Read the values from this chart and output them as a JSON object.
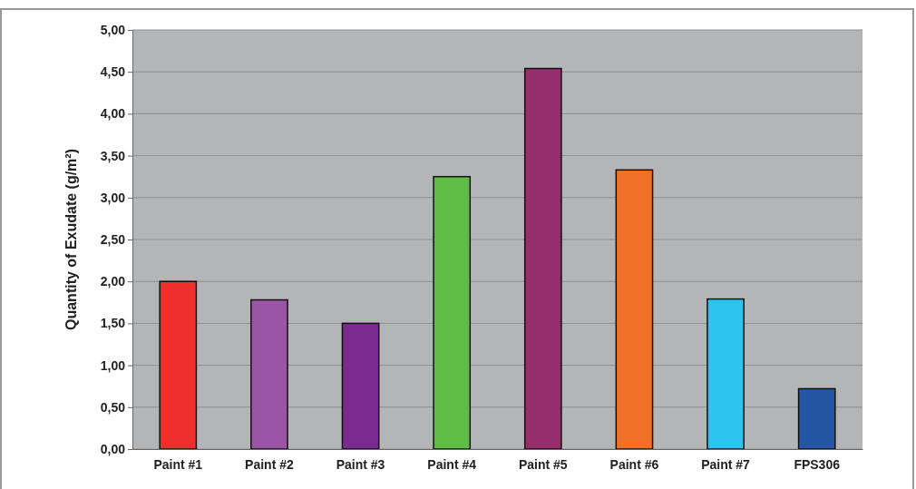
{
  "chart_data": {
    "type": "bar",
    "ylabel": "Quantity of Exudate (g/m²)",
    "categories": [
      "Paint #1",
      "Paint #2",
      "Paint #3",
      "Paint #4",
      "Paint #5",
      "Paint #6",
      "Paint #7",
      "FPS306"
    ],
    "values": [
      2.0,
      1.78,
      1.5,
      3.25,
      4.54,
      3.33,
      1.79,
      0.72
    ],
    "colors": [
      "#ee2e2a",
      "#9b55a6",
      "#7b2a90",
      "#5fbd45",
      "#972e6c",
      "#f07028",
      "#2ec4ef",
      "#2456a4"
    ],
    "ylim": [
      0,
      5
    ],
    "yticks": [
      {
        "value": 0,
        "label": "0,00"
      },
      {
        "value": 0.5,
        "label": "0,50"
      },
      {
        "value": 1,
        "label": "1,00"
      },
      {
        "value": 1.5,
        "label": "1,50"
      },
      {
        "value": 2,
        "label": "2,00"
      },
      {
        "value": 2.5,
        "label": "2,50"
      },
      {
        "value": 3,
        "label": "3,00"
      },
      {
        "value": 3.5,
        "label": "3,50"
      },
      {
        "value": 4,
        "label": "4,00"
      },
      {
        "value": 4.5,
        "label": "4,50"
      },
      {
        "value": 5,
        "label": "5,00"
      }
    ],
    "grid": "y"
  }
}
